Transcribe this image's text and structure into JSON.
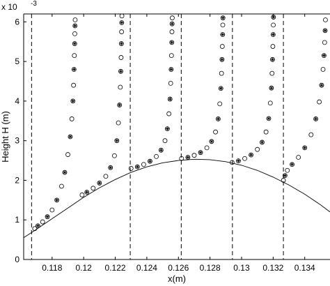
{
  "chart_data": {
    "type": "scatter",
    "title": "",
    "xlabel": "x(m)",
    "ylabel": "Height H (m)",
    "y_multiplier_label": "x 10",
    "y_multiplier_exponent": "-3",
    "xlim": [
      0.1162,
      0.1356
    ],
    "ylim": [
      0,
      0.0062
    ],
    "x_ticks": [
      0.118,
      0.12,
      0.122,
      0.124,
      0.126,
      0.128,
      0.13,
      0.132,
      0.134
    ],
    "x_tick_labels": [
      "0.118",
      "0.12",
      "0.122",
      "0.124",
      "0.126",
      "0.128",
      "0.13",
      "0.132",
      "0.134"
    ],
    "y_ticks": [
      0,
      0.001,
      0.002,
      0.003,
      0.004,
      0.005,
      0.006
    ],
    "y_tick_labels": [
      "0",
      "1",
      "2",
      "3",
      "4",
      "5",
      "6"
    ],
    "grid": false,
    "legend": "none",
    "colors": {
      "axis": "#000000",
      "markers": "#000000",
      "background": "#ffffff"
    },
    "bed_profile": {
      "x": [
        0.1162,
        0.117,
        0.118,
        0.119,
        0.12,
        0.121,
        0.122,
        0.123,
        0.124,
        0.125,
        0.126,
        0.127,
        0.128,
        0.129,
        0.13,
        0.131,
        0.132,
        0.133,
        0.134,
        0.135,
        0.1356
      ],
      "y": [
        0.00055,
        0.00076,
        0.00103,
        0.0013,
        0.00157,
        0.00181,
        0.00202,
        0.0022,
        0.00234,
        0.00244,
        0.0025,
        0.00253,
        0.00252,
        0.00247,
        0.00238,
        0.00225,
        0.00208,
        0.00188,
        0.00165,
        0.00138,
        0.0012
      ]
    },
    "dashed_lines_x": [
      0.1167,
      0.12295,
      0.12618,
      0.12942,
      0.13265
    ],
    "profiles": [
      {
        "x": [
          0.1169,
          0.1171,
          0.1174,
          0.1177,
          0.118,
          0.1183,
          0.1186,
          0.1188,
          0.119,
          0.11915,
          0.11925,
          0.11932,
          0.11936,
          0.11939,
          0.11941,
          0.11943,
          0.11944,
          0.11945,
          0.11946
        ],
        "y": [
          0.00078,
          0.00085,
          0.00095,
          0.00108,
          0.00125,
          0.0015,
          0.00185,
          0.0022,
          0.00265,
          0.0031,
          0.00355,
          0.004,
          0.0044,
          0.0048,
          0.00515,
          0.00545,
          0.0057,
          0.0059,
          0.00605
        ]
      },
      {
        "x": [
          0.1199,
          0.1202,
          0.1206,
          0.121,
          0.1214,
          0.1217,
          0.12195,
          0.1221,
          0.1222,
          0.12227,
          0.12232,
          0.12235,
          0.12237,
          0.12239,
          0.1224,
          0.12241,
          0.12242
        ],
        "y": [
          0.00163,
          0.0017,
          0.0018,
          0.00193,
          0.0021,
          0.00232,
          0.00262,
          0.003,
          0.00345,
          0.0039,
          0.00435,
          0.00475,
          0.0051,
          0.00545,
          0.00575,
          0.00598,
          0.00615
        ]
      },
      {
        "x": [
          0.123,
          0.1234,
          0.1238,
          0.1242,
          0.1246,
          0.1249,
          0.12515,
          0.1253,
          0.1254,
          0.12547,
          0.12551,
          0.12554,
          0.12556,
          0.12558,
          0.12559,
          0.1256,
          0.12561
        ],
        "y": [
          0.0023,
          0.00234,
          0.0024,
          0.00248,
          0.0026,
          0.00276,
          0.003,
          0.0033,
          0.00368,
          0.00405,
          0.00445,
          0.0048,
          0.00515,
          0.00548,
          0.00575,
          0.00595,
          0.0061
        ]
      },
      {
        "x": [
          0.1262,
          0.1266,
          0.127,
          0.1274,
          0.1278,
          0.1281,
          0.12835,
          0.12852,
          0.12862,
          0.12869,
          0.12873,
          0.12876,
          0.12878,
          0.1288,
          0.12881,
          0.12882
        ],
        "y": [
          0.00255,
          0.00258,
          0.00263,
          0.0027,
          0.00282,
          0.00298,
          0.00322,
          0.00355,
          0.00393,
          0.00432,
          0.0047,
          0.00505,
          0.00538,
          0.00568,
          0.00592,
          0.0061
        ]
      },
      {
        "x": [
          0.1294,
          0.1298,
          0.1302,
          0.1306,
          0.131,
          0.1313,
          0.13155,
          0.13172,
          0.13182,
          0.13189,
          0.13193,
          0.13196,
          0.13198,
          0.132,
          0.13201,
          0.13202
        ],
        "y": [
          0.00245,
          0.00249,
          0.00255,
          0.00264,
          0.00278,
          0.00296,
          0.00322,
          0.00356,
          0.00395,
          0.00433,
          0.0047,
          0.00505,
          0.00538,
          0.00568,
          0.00592,
          0.00612
        ]
      },
      {
        "x": [
          0.13265,
          0.13275,
          0.1329,
          0.1332,
          0.1336,
          0.134,
          0.1344,
          0.1347,
          0.13492,
          0.13507,
          0.13516,
          0.13522,
          0.13526,
          0.13529,
          0.13531
        ],
        "y": [
          0.002,
          0.00212,
          0.00225,
          0.0024,
          0.00258,
          0.00282,
          0.00315,
          0.00355,
          0.00398,
          0.0044,
          0.0048,
          0.00515,
          0.00548,
          0.00578,
          0.00605
        ]
      }
    ]
  }
}
